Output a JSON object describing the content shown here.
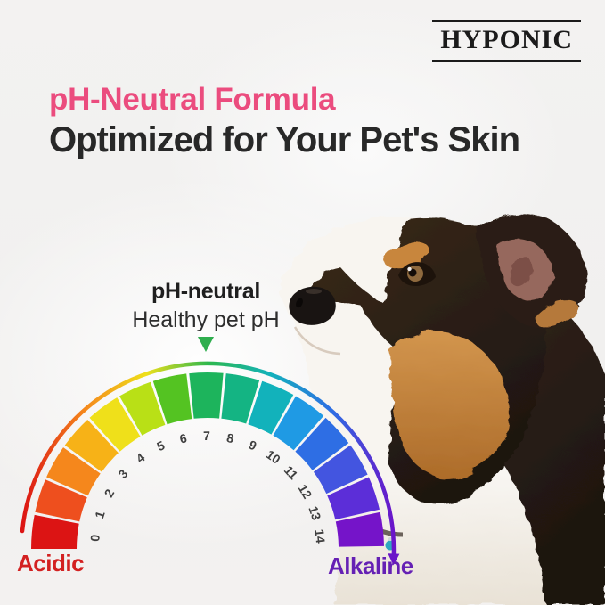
{
  "palette": {
    "background": "#f2f1f0",
    "accent_pink": "#eb4c7e",
    "heading_dark": "#282828",
    "brand_ink": "#1b1b1b",
    "callout_ink": "#1f1f1f",
    "acidic_red": "#d32121",
    "alkaline_purple": "#6520b4",
    "pointer_green": "#2fae4e",
    "tick_ink": "#3f3f3f",
    "fur_dark": "#2a1e14",
    "fur_tan": "#c08040",
    "fur_white": "#f8f5f0",
    "ear_inner": "#96675d",
    "nose_black": "#191412",
    "eye_amber": "#8f6a3e",
    "collar_tag_teal": "#2fa7c0"
  },
  "brand": {
    "name": "HYPONIC"
  },
  "headline": {
    "accent_line": "pH-Neutral Formula",
    "main_line": "Optimized for Your Pet's Skin"
  },
  "callout": {
    "title": "pH-neutral",
    "subtitle": "Healthy pet pH"
  },
  "gauge": {
    "start_label": "Acidic",
    "end_label": "Alkaline",
    "segments": [
      {
        "ph": "0",
        "color": "#dc1414"
      },
      {
        "ph": "1",
        "color": "#ee4f1e"
      },
      {
        "ph": "2",
        "color": "#f5871c"
      },
      {
        "ph": "3",
        "color": "#f7b217"
      },
      {
        "ph": "4",
        "color": "#efe01a"
      },
      {
        "ph": "5",
        "color": "#b9e016"
      },
      {
        "ph": "6",
        "color": "#54c322"
      },
      {
        "ph": "7",
        "color": "#1db45c"
      },
      {
        "ph": "8",
        "color": "#14b483"
      },
      {
        "ph": "9",
        "color": "#12b2bb"
      },
      {
        "ph": "10",
        "color": "#1f9ae4"
      },
      {
        "ph": "11",
        "color": "#2e6ee4"
      },
      {
        "ph": "12",
        "color": "#4355e0"
      },
      {
        "ph": "13",
        "color": "#5c2ed8"
      },
      {
        "ph": "14",
        "color": "#7514c9"
      }
    ],
    "arc_gradient": [
      "#dc1414",
      "#f5871c",
      "#efe01a",
      "#2eb84d",
      "#12b2bb",
      "#2e6ee4",
      "#6a14c9"
    ]
  }
}
